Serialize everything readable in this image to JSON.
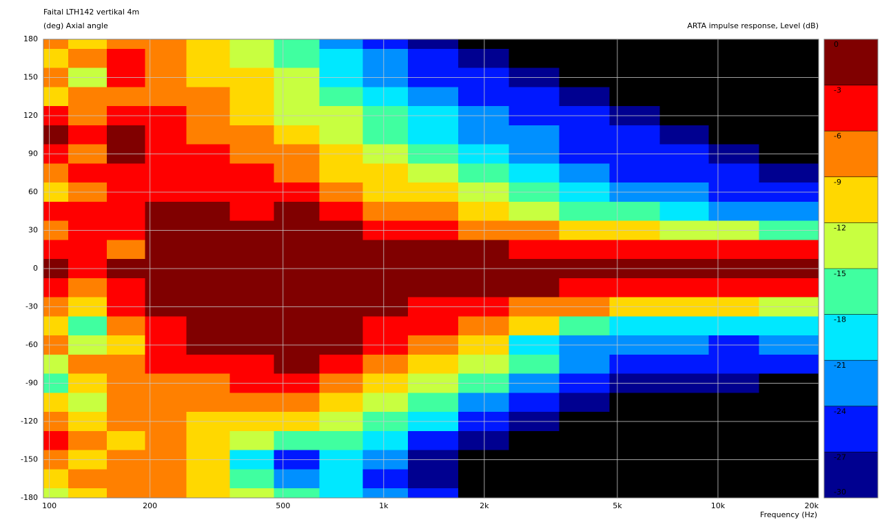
{
  "chart_data": {
    "type": "heatmap",
    "title": "Faital LTH142 vertikal 4m",
    "y_label": "(deg)  Axial angle",
    "z_label": "ARTA impulse response, Level  (dB)",
    "x_label": "Frequency  (Hz)",
    "x_scale": "log",
    "grid": true,
    "xlim": [
      96,
      20000
    ],
    "xticks": [
      100,
      200,
      500,
      {
        "value": 1000,
        "label": "1k"
      },
      {
        "value": 2000,
        "label": "2k"
      },
      {
        "value": 5000,
        "label": "5k"
      },
      {
        "value": 10000,
        "label": "10k"
      },
      {
        "value": 20000,
        "label": "20k"
      }
    ],
    "ylim": [
      -180,
      180
    ],
    "yticks": [
      180,
      150,
      120,
      90,
      60,
      30,
      0,
      -30,
      -60,
      -90,
      -120,
      -150,
      -180
    ],
    "zlim": [
      -30,
      0
    ],
    "zticks": [
      0,
      -3,
      -6,
      -9,
      -12,
      -15,
      -18,
      -21,
      -24,
      -27,
      -30
    ],
    "colors": [
      "#800000",
      "#ff0000",
      "#ff8000",
      "#ffd800",
      "#c8ff40",
      "#40ffa0",
      "#00e8ff",
      "#0090ff",
      "#0018ff",
      "#000090",
      "#000000"
    ],
    "x": [
      100,
      130,
      170,
      220,
      300,
      400,
      550,
      750,
      1000,
      1400,
      2000,
      2800,
      4000,
      5600,
      8000,
      11000,
      16000
    ],
    "y": [
      180,
      165,
      150,
      135,
      120,
      105,
      90,
      75,
      60,
      45,
      30,
      15,
      0,
      -15,
      -30,
      -45,
      -60,
      -75,
      -90,
      -105,
      -120,
      -135,
      -150,
      -165,
      -180
    ],
    "z": [
      [
        -7.5,
        -10.5,
        -7.5,
        -7.5,
        -10.5,
        -13.5,
        -16.5,
        -22.5,
        -25.5,
        -28.5,
        -33,
        -33,
        -33,
        -33,
        -33,
        -33,
        -33
      ],
      [
        -10.5,
        -7.5,
        -4.5,
        -7.5,
        -10.5,
        -13.5,
        -16.5,
        -19.5,
        -22.5,
        -25.5,
        -28.5,
        -33,
        -33,
        -33,
        -33,
        -33,
        -33
      ],
      [
        -7.5,
        -13.5,
        -4.5,
        -7.5,
        -10.5,
        -10.5,
        -13.5,
        -19.5,
        -22.5,
        -25.5,
        -25.5,
        -28.5,
        -33,
        -33,
        -33,
        -33,
        -33
      ],
      [
        -10.5,
        -7.5,
        -7.5,
        -7.5,
        -7.5,
        -10.5,
        -13.5,
        -16.5,
        -19.5,
        -22.5,
        -25.5,
        -25.5,
        -28.5,
        -33,
        -33,
        -33,
        -33
      ],
      [
        -4.5,
        -7.5,
        -4.5,
        -4.5,
        -7.5,
        -10.5,
        -13.5,
        -13.5,
        -16.5,
        -19.5,
        -22.5,
        -25.5,
        -25.5,
        -28.5,
        -33,
        -33,
        -33
      ],
      [
        -1.5,
        -4.5,
        -1.5,
        -4.5,
        -7.5,
        -7.5,
        -10.5,
        -13.5,
        -16.5,
        -19.5,
        -22.5,
        -22.5,
        -25.5,
        -25.5,
        -28.5,
        -33,
        -33
      ],
      [
        -4.5,
        -7.5,
        -1.5,
        -4.5,
        -4.5,
        -7.5,
        -7.5,
        -10.5,
        -13.5,
        -16.5,
        -19.5,
        -22.5,
        -25.5,
        -25.5,
        -25.5,
        -28.5,
        -33
      ],
      [
        -7.5,
        -4.5,
        -4.5,
        -4.5,
        -4.5,
        -4.5,
        -7.5,
        -10.5,
        -10.5,
        -13.5,
        -16.5,
        -19.5,
        -22.5,
        -25.5,
        -25.5,
        -25.5,
        -28.5
      ],
      [
        -10.5,
        -7.5,
        -4.5,
        -4.5,
        -4.5,
        -4.5,
        -4.5,
        -7.5,
        -10.5,
        -10.5,
        -13.5,
        -16.5,
        -19.5,
        -22.5,
        -22.5,
        -25.5,
        -25.5
      ],
      [
        -4.5,
        -4.5,
        -4.5,
        -1.5,
        -1.5,
        -4.5,
        -1.5,
        -4.5,
        -7.5,
        -7.5,
        -10.5,
        -13.5,
        -16.5,
        -16.5,
        -19.5,
        -22.5,
        -22.5
      ],
      [
        -7.5,
        -4.5,
        -4.5,
        -1.5,
        -1.5,
        -1.5,
        -1.5,
        -1.5,
        -4.5,
        -4.5,
        -7.5,
        -7.5,
        -10.5,
        -10.5,
        -13.5,
        -13.5,
        -16.5
      ],
      [
        -4.5,
        -4.5,
        -7.5,
        -1.5,
        -1.5,
        -1.5,
        -1.5,
        -1.5,
        -1.5,
        -1.5,
        -1.5,
        -4.5,
        -4.5,
        -4.5,
        -4.5,
        -4.5,
        -4.5
      ],
      [
        -1.5,
        -4.5,
        -1.5,
        -1.5,
        -1.5,
        -1.5,
        -1.5,
        -1.5,
        -1.5,
        -1.5,
        -1.5,
        -1.5,
        -1.5,
        -1.5,
        -1.5,
        -1.5,
        -1.5
      ],
      [
        -4.5,
        -7.5,
        -4.5,
        -1.5,
        -1.5,
        -1.5,
        -1.5,
        -1.5,
        -1.5,
        -1.5,
        -1.5,
        -1.5,
        -4.5,
        -4.5,
        -4.5,
        -4.5,
        -4.5
      ],
      [
        -7.5,
        -10.5,
        -4.5,
        -1.5,
        -1.5,
        -1.5,
        -1.5,
        -1.5,
        -1.5,
        -4.5,
        -4.5,
        -7.5,
        -7.5,
        -10.5,
        -10.5,
        -10.5,
        -13.5
      ],
      [
        -10.5,
        -16.5,
        -7.5,
        -4.5,
        -1.5,
        -1.5,
        -1.5,
        -1.5,
        -4.5,
        -4.5,
        -7.5,
        -10.5,
        -16.5,
        -19.5,
        -19.5,
        -19.5,
        -19.5
      ],
      [
        -7.5,
        -13.5,
        -10.5,
        -4.5,
        -1.5,
        -1.5,
        -1.5,
        -1.5,
        -4.5,
        -7.5,
        -10.5,
        -19.5,
        -22.5,
        -22.5,
        -22.5,
        -25.5,
        -22.5
      ],
      [
        -13.5,
        -7.5,
        -7.5,
        -4.5,
        -4.5,
        -4.5,
        -1.5,
        -4.5,
        -7.5,
        -10.5,
        -13.5,
        -16.5,
        -22.5,
        -25.5,
        -25.5,
        -25.5,
        -25.5
      ],
      [
        -16.5,
        -10.5,
        -7.5,
        -7.5,
        -7.5,
        -4.5,
        -4.5,
        -7.5,
        -10.5,
        -13.5,
        -16.5,
        -22.5,
        -25.5,
        -28.5,
        -28.5,
        -28.5,
        -33
      ],
      [
        -10.5,
        -13.5,
        -7.5,
        -7.5,
        -7.5,
        -7.5,
        -7.5,
        -10.5,
        -13.5,
        -16.5,
        -22.5,
        -25.5,
        -28.5,
        -33,
        -33,
        -33,
        -33
      ],
      [
        -7.5,
        -10.5,
        -7.5,
        -7.5,
        -10.5,
        -10.5,
        -10.5,
        -13.5,
        -16.5,
        -19.5,
        -25.5,
        -28.5,
        -33,
        -33,
        -33,
        -33,
        -33
      ],
      [
        -4.5,
        -7.5,
        -10.5,
        -7.5,
        -10.5,
        -13.5,
        -16.5,
        -16.5,
        -19.5,
        -25.5,
        -28.5,
        -33,
        -33,
        -33,
        -33,
        -33,
        -33
      ],
      [
        -7.5,
        -10.5,
        -7.5,
        -7.5,
        -10.5,
        -19.5,
        -25.5,
        -19.5,
        -22.5,
        -28.5,
        -33,
        -33,
        -33,
        -33,
        -33,
        -33,
        -33
      ],
      [
        -10.5,
        -7.5,
        -7.5,
        -7.5,
        -10.5,
        -16.5,
        -22.5,
        -19.5,
        -25.5,
        -28.5,
        -33,
        -33,
        -33,
        -33,
        -33,
        -33,
        -33
      ],
      [
        -13.5,
        -10.5,
        -7.5,
        -7.5,
        -10.5,
        -13.5,
        -16.5,
        -19.5,
        -22.5,
        -25.5,
        -33,
        -33,
        -33,
        -33,
        -33,
        -33,
        -33
      ]
    ]
  }
}
